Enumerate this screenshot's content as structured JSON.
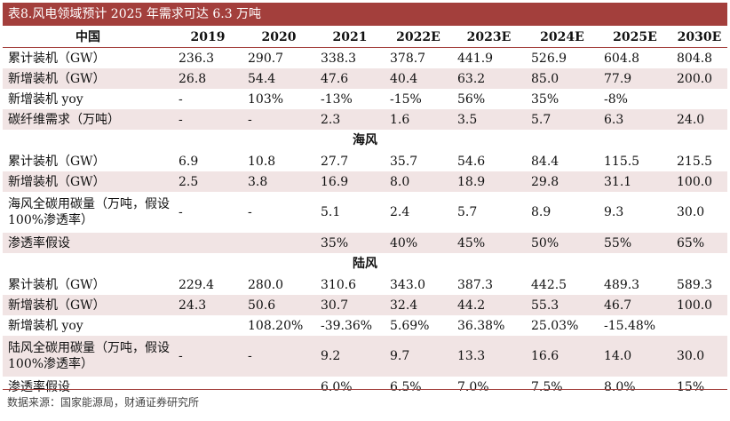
{
  "title": "表8.风电领域预计 2025 年需求可达 6.3 万吨",
  "headers": [
    "中国",
    "2019",
    "2020",
    "2021",
    "2022E",
    "2023E",
    "2024E",
    "2025E",
    "2030E"
  ],
  "sections": [
    {
      "title": "",
      "rows": [
        {
          "label": "累计装机（GW）",
          "values": [
            "236.3",
            "290.7",
            "338.3",
            "378.7",
            "441.9",
            "526.9",
            "604.8",
            "804.8"
          ]
        },
        {
          "label": "新增装机（GW）",
          "values": [
            "26.8",
            "54.4",
            "47.6",
            "40.4",
            "63.2",
            "85.0",
            "77.9",
            "200.0"
          ]
        },
        {
          "label": "新增装机 yoy",
          "values": [
            "-",
            "103%",
            "-13%",
            "-15%",
            "56%",
            "35%",
            "-8%",
            ""
          ]
        },
        {
          "label": "碳纤维需求（万吨）",
          "values": [
            "-",
            "-",
            "2.3",
            "1.6",
            "3.5",
            "5.7",
            "6.3",
            "24.0"
          ]
        }
      ]
    },
    {
      "title": "海风",
      "rows": [
        {
          "label": "累计装机（GW）",
          "values": [
            "6.9",
            "10.8",
            "27.7",
            "35.7",
            "54.6",
            "84.4",
            "115.5",
            "215.5"
          ]
        },
        {
          "label": "新增装机（GW）",
          "values": [
            "2.5",
            "3.8",
            "16.9",
            "8.0",
            "18.9",
            "29.8",
            "31.1",
            "100.0"
          ]
        },
        {
          "label": "海风全碳用碳量（万吨，假设 100%渗透率）",
          "values": [
            "-",
            "-",
            "5.1",
            "2.4",
            "5.7",
            "8.9",
            "9.3",
            "30.0"
          ]
        },
        {
          "label": "渗透率假设",
          "values": [
            "",
            "",
            "35%",
            "40%",
            "45%",
            "50%",
            "55%",
            "65%"
          ]
        }
      ]
    },
    {
      "title": "陆风",
      "rows": [
        {
          "label": "累计装机（GW）",
          "values": [
            "229.4",
            "280.0",
            "310.6",
            "343.0",
            "387.3",
            "442.5",
            "489.3",
            "589.3"
          ]
        },
        {
          "label": "新增装机（GW）",
          "values": [
            "24.3",
            "50.6",
            "30.7",
            "32.4",
            "44.2",
            "55.3",
            "46.7",
            "100.0"
          ]
        },
        {
          "label": "新增装机 yoy",
          "values": [
            "",
            "108.20%",
            "-39.36%",
            "5.69%",
            "36.38%",
            "25.03%",
            "-15.48%",
            ""
          ]
        },
        {
          "label": "陆风全碳用碳量（万吨，假设 100%渗透率）",
          "values": [
            "-",
            "-",
            "9.2",
            "9.7",
            "13.3",
            "16.6",
            "14.0",
            "30.0"
          ]
        },
        {
          "label": "渗透率假设",
          "values": [
            "",
            "",
            "6.0%",
            "6.5%",
            "7.0%",
            "7.5%",
            "8.0%",
            "15%"
          ]
        }
      ]
    }
  ],
  "source": "数据来源：国家能源局，财通证券研究所",
  "colors": {
    "accent": "#a33f3c",
    "shade": "#f1e4e4"
  }
}
